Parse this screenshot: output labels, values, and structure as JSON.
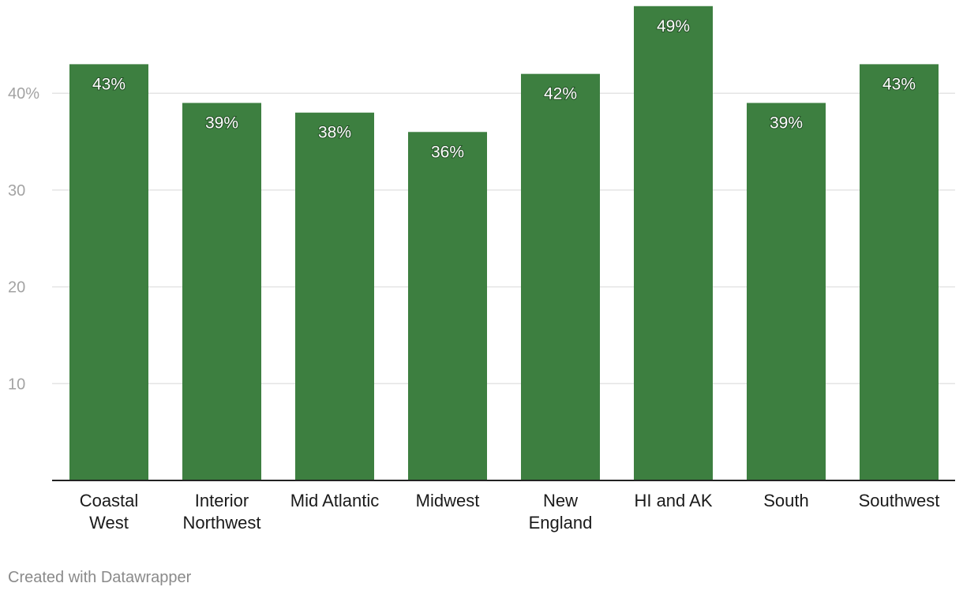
{
  "chart_data": {
    "type": "bar",
    "title": "",
    "xlabel": "",
    "ylabel": "",
    "categories": [
      [
        "Coastal",
        "West"
      ],
      [
        "Interior",
        "Northwest"
      ],
      [
        "Mid Atlantic"
      ],
      [
        "Midwest"
      ],
      [
        "New",
        "England"
      ],
      [
        "HI and AK"
      ],
      [
        "South"
      ],
      [
        "Southwest"
      ]
    ],
    "values": [
      43,
      39,
      38,
      36,
      42,
      49,
      39,
      43
    ],
    "value_labels": [
      "43%",
      "39%",
      "38%",
      "36%",
      "42%",
      "49%",
      "39%",
      "43%"
    ],
    "ylim": [
      0,
      49
    ],
    "yticks": [
      10,
      20,
      30,
      40
    ],
    "ytick_labels": [
      "10",
      "20",
      "30",
      "40%"
    ],
    "grid": true,
    "bar_color": "#3d7f40"
  },
  "footer": {
    "credit": "Created with Datawrapper"
  }
}
